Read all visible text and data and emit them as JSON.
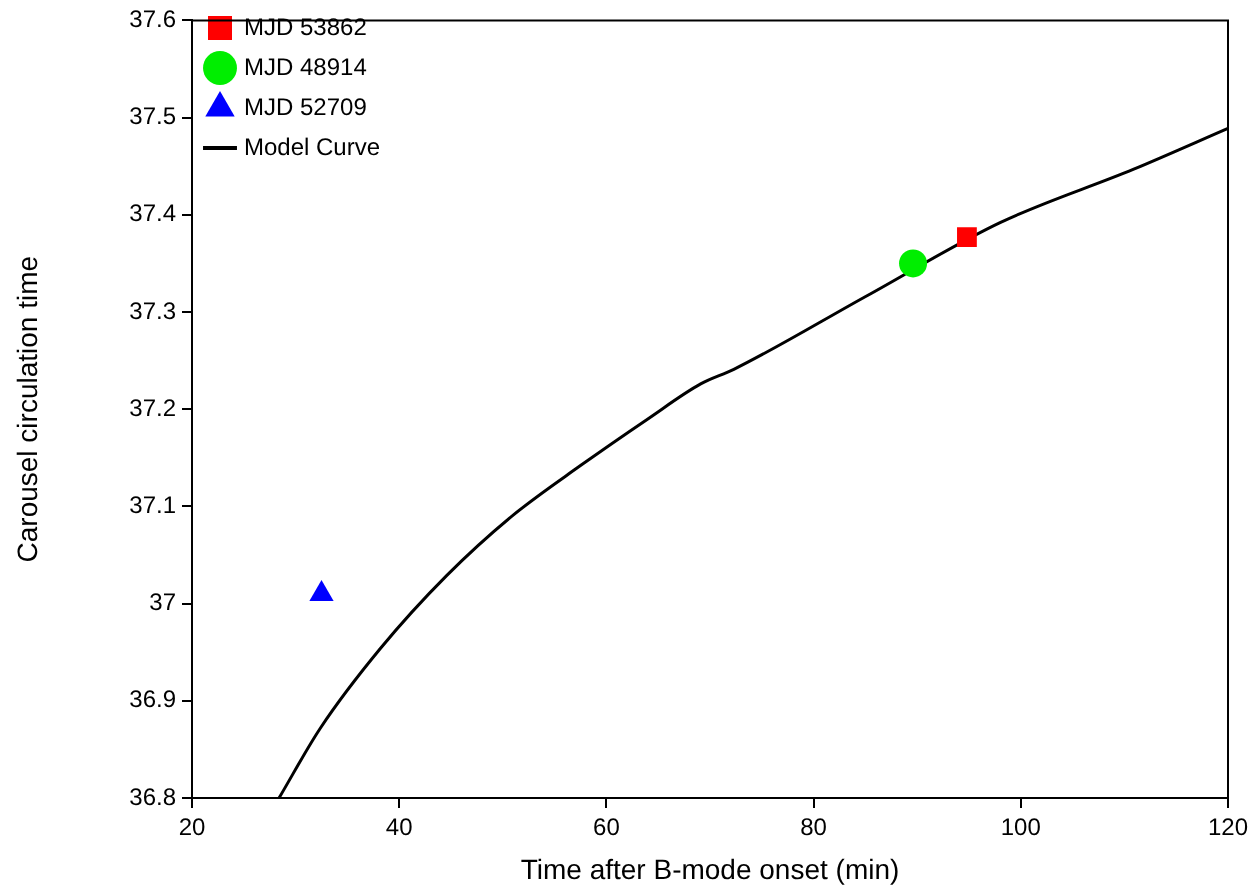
{
  "chart_data": {
    "type": "scatter",
    "xlabel": "Time after B-mode onset (min)",
    "ylabel": "Carousel circulation time",
    "xlim": [
      20,
      120
    ],
    "xticks": [
      20,
      40,
      60,
      80,
      100,
      120
    ],
    "ylim": [
      36.8,
      37.6
    ],
    "yticks": [
      36.8,
      {
        "value": 36.9,
        "label": "36.9"
      },
      37,
      37.1,
      37.2,
      37.3,
      37.4,
      37.5,
      37.6
    ],
    "grid": false,
    "legend": "top left",
    "series": [
      {
        "name": "MJD 53862",
        "marker": "square",
        "color": "#ff0000",
        "x": [
          94.8
        ],
        "values": [
          37.377
        ]
      },
      {
        "name": "MJD 48914",
        "marker": "circle",
        "color": "#00ee00",
        "x": [
          89.6
        ],
        "values": [
          37.35
        ]
      },
      {
        "name": "MJD 52709",
        "marker": "triangle",
        "color": "#0000ff",
        "x": [
          32.5
        ],
        "values": [
          37.01
        ]
      },
      {
        "name": "Model Curve",
        "type": "line",
        "marker": "none",
        "line_style": "solid",
        "color": "#000000",
        "x": [
          28.4,
          32.4,
          38.2,
          44.6,
          51.0,
          57.5,
          64.0,
          69.1,
          72.3,
          85.2,
          98.0,
          110.9,
          120
        ],
        "values": [
          36.8,
          36.872,
          36.954,
          37.029,
          37.091,
          37.142,
          37.19,
          37.226,
          37.241,
          37.317,
          37.392,
          37.447,
          37.489
        ]
      }
    ]
  }
}
